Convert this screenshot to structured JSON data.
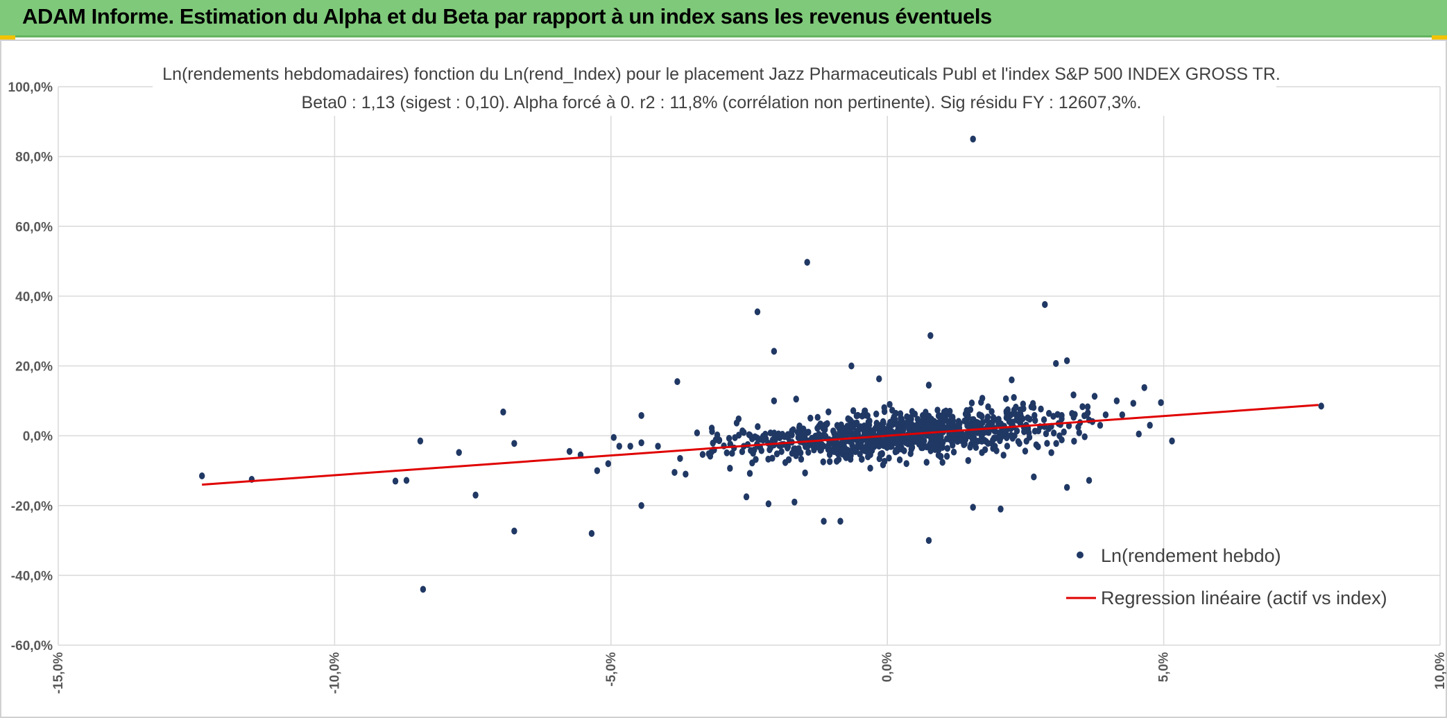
{
  "banner": {
    "title": "ADAM Informe. Estimation du Alpha et du Beta par rapport à un index sans les revenus éventuels"
  },
  "colors": {
    "banner": "#7fc97a",
    "points": "#203864",
    "regression": "#e00000",
    "grid": "#d9d9d9"
  },
  "chart_data": {
    "type": "scatter",
    "title_lines": [
      "Ln(rendements hebdomadaires) fonction du Ln(rend_Index) pour le placement Jazz Pharmaceuticals Publ et l'index S&P 500 INDEX GROSS TR.",
      "Beta0 : 1,13 (sigest : 0,10). Alpha forcé à 0. r2 : 11,8% (corrélation non pertinente). Sig résidu FY : 12607,3%."
    ],
    "xlim": [
      -0.15,
      0.1
    ],
    "ylim": [
      -0.6,
      1.0
    ],
    "x_ticks": [
      -0.15,
      -0.1,
      -0.05,
      0.0,
      0.05,
      0.1
    ],
    "x_tick_labels": [
      "-15,0%",
      "-10,0%",
      "-5,0%",
      "0,0%",
      "5,0%",
      "10,0%"
    ],
    "y_ticks": [
      1.0,
      0.8,
      0.6,
      0.4,
      0.2,
      0.0,
      -0.2,
      -0.4,
      -0.6
    ],
    "y_tick_labels": [
      "100,0%",
      "80,0%",
      "60,0%",
      "40,0%",
      "20,0%",
      "0,0%",
      "-20,0%",
      "-40,0%",
      "-60,0%"
    ],
    "grid": true,
    "legend_position": "bottom-right",
    "series": [
      {
        "name": "Ln(rendement hebdo)",
        "kind": "points",
        "outliers": [
          [
            0.0155,
            0.85
          ],
          [
            -0.0145,
            0.497
          ],
          [
            0.0285,
            0.376
          ],
          [
            -0.0235,
            0.355
          ],
          [
            0.0078,
            0.287
          ],
          [
            -0.0205,
            0.242
          ],
          [
            0.0325,
            0.215
          ],
          [
            0.0305,
            0.207
          ],
          [
            0.0075,
            -0.3
          ],
          [
            -0.084,
            -0.44
          ],
          [
            -0.0535,
            -0.28
          ],
          [
            -0.0675,
            -0.273
          ],
          [
            -0.0115,
            -0.245
          ],
          [
            -0.0745,
            -0.17
          ],
          [
            -0.0445,
            -0.2
          ],
          [
            0.0155,
            -0.205
          ],
          [
            0.0205,
            -0.21
          ],
          [
            -0.0215,
            -0.195
          ],
          [
            -0.0168,
            -0.19
          ],
          [
            -0.0255,
            -0.175
          ],
          [
            0.0325,
            -0.148
          ],
          [
            -0.124,
            -0.115
          ],
          [
            -0.115,
            -0.125
          ],
          [
            -0.089,
            -0.13
          ],
          [
            -0.087,
            -0.128
          ],
          [
            0.0365,
            -0.128
          ],
          [
            0.0265,
            -0.118
          ],
          [
            -0.0085,
            -0.245
          ],
          [
            -0.038,
            0.155
          ],
          [
            -0.0165,
            0.105
          ],
          [
            -0.0205,
            0.1
          ],
          [
            0.0225,
            0.16
          ],
          [
            -0.0015,
            0.163
          ],
          [
            -0.0065,
            0.2
          ],
          [
            0.0075,
            0.145
          ],
          [
            0.0375,
            0.113
          ],
          [
            -0.0695,
            0.068
          ],
          [
            -0.0445,
            0.058
          ],
          [
            0.0445,
            0.093
          ],
          [
            -0.0845,
            -0.015
          ],
          [
            -0.0775,
            -0.048
          ],
          [
            -0.0675,
            -0.022
          ],
          [
            -0.0575,
            -0.045
          ],
          [
            -0.0555,
            -0.055
          ],
          [
            -0.0525,
            -0.1
          ],
          [
            -0.0505,
            -0.08
          ],
          [
            -0.0495,
            -0.005
          ],
          [
            -0.0485,
            -0.03
          ],
          [
            -0.0465,
            -0.03
          ],
          [
            -0.0385,
            -0.105
          ],
          [
            -0.0375,
            -0.065
          ],
          [
            -0.0365,
            -0.11
          ],
          [
            -0.0445,
            -0.02
          ],
          [
            -0.0415,
            -0.03
          ],
          [
            0.0785,
            0.085
          ],
          [
            0.0495,
            0.095
          ],
          [
            0.0465,
            0.138
          ],
          [
            0.0515,
            -0.015
          ],
          [
            0.0475,
            0.03
          ],
          [
            0.0455,
            0.005
          ],
          [
            0.0425,
            0.06
          ],
          [
            0.0415,
            0.1
          ],
          [
            0.0395,
            0.06
          ],
          [
            0.0385,
            0.03
          ],
          [
            0.0365,
            0.045
          ]
        ],
        "cluster": {
          "count": 900,
          "x_mean": 0.002,
          "x_sd": 0.014,
          "y_sd": 0.032,
          "slope": 1.13,
          "seed": 12607
        }
      },
      {
        "name": "Regression linéaire (actif vs index)",
        "kind": "line",
        "slope": 1.13,
        "intercept": 0.0,
        "x_range": [
          -0.124,
          0.078
        ]
      }
    ]
  }
}
